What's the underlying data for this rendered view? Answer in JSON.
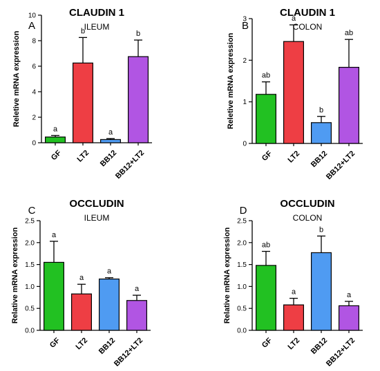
{
  "figure_title": "",
  "chart_data": [
    {
      "type": "bar",
      "panel_letter": "A",
      "title": "CLAUDIN 1",
      "subtitle": "ILEUM",
      "ylabel": "Reletive mRNA expression",
      "xlabel": "",
      "ylim": [
        0,
        10
      ],
      "yticks": [
        "0",
        "2",
        "4",
        "6",
        "8",
        "10"
      ],
      "categories": [
        "GF",
        "LT2",
        "BB12",
        "BB12+LT2"
      ],
      "values": [
        0.45,
        6.25,
        0.25,
        6.75
      ],
      "errors": [
        0.12,
        2.0,
        0.08,
        1.3
      ],
      "annotations": [
        "a",
        "b",
        "a",
        "b"
      ],
      "bar_colors": [
        "#22c122",
        "#ee3e44",
        "#4f9bf2",
        "#b155e3"
      ]
    },
    {
      "type": "bar",
      "panel_letter": "B",
      "title": "CLAUDIN 1",
      "subtitle": "COLON",
      "ylabel": "Reletive mRNA expression",
      "xlabel": "",
      "ylim": [
        0,
        3
      ],
      "yticks": [
        "0",
        "1",
        "2",
        "3"
      ],
      "categories": [
        "GF",
        "LT2",
        "BB12",
        "BB12+LT2"
      ],
      "values": [
        1.18,
        2.45,
        0.5,
        1.83
      ],
      "errors": [
        0.3,
        0.4,
        0.15,
        0.67
      ],
      "annotations": [
        "ab",
        "a",
        "b",
        "ab"
      ],
      "bar_colors": [
        "#22c122",
        "#ee3e44",
        "#4f9bf2",
        "#b155e3"
      ]
    },
    {
      "type": "bar",
      "panel_letter": "C",
      "title": "OCCLUDIN",
      "subtitle": "ILEUM",
      "ylabel": "Relative mRNA expression",
      "xlabel": "",
      "ylim": [
        0,
        2.5
      ],
      "yticks": [
        "0.0",
        "0.5",
        "1.0",
        "1.5",
        "2.0",
        "2.5"
      ],
      "categories": [
        "GF",
        "LT2",
        "BB12",
        "BB12+LT2"
      ],
      "values": [
        1.55,
        0.83,
        1.17,
        0.68
      ],
      "errors": [
        0.48,
        0.22,
        0.03,
        0.12
      ],
      "annotations": [
        "a",
        "a",
        "a",
        "a"
      ],
      "bar_colors": [
        "#22c122",
        "#ee3e44",
        "#4f9bf2",
        "#b155e3"
      ]
    },
    {
      "type": "bar",
      "panel_letter": "D",
      "title": "OCCLUDIN",
      "subtitle": "COLON",
      "ylabel": "Relative mRNA expression",
      "xlabel": "",
      "ylim": [
        0,
        2.5
      ],
      "yticks": [
        "0.0",
        "0.5",
        "1.0",
        "1.5",
        "2.0",
        "2.5"
      ],
      "categories": [
        "GF",
        "LT2",
        "BB12",
        "BB12+LT2"
      ],
      "values": [
        1.48,
        0.58,
        1.77,
        0.56
      ],
      "errors": [
        0.32,
        0.15,
        0.38,
        0.1
      ],
      "annotations": [
        "ab",
        "a",
        "b",
        "a"
      ],
      "bar_colors": [
        "#22c122",
        "#ee3e44",
        "#4f9bf2",
        "#b155e3"
      ]
    }
  ]
}
